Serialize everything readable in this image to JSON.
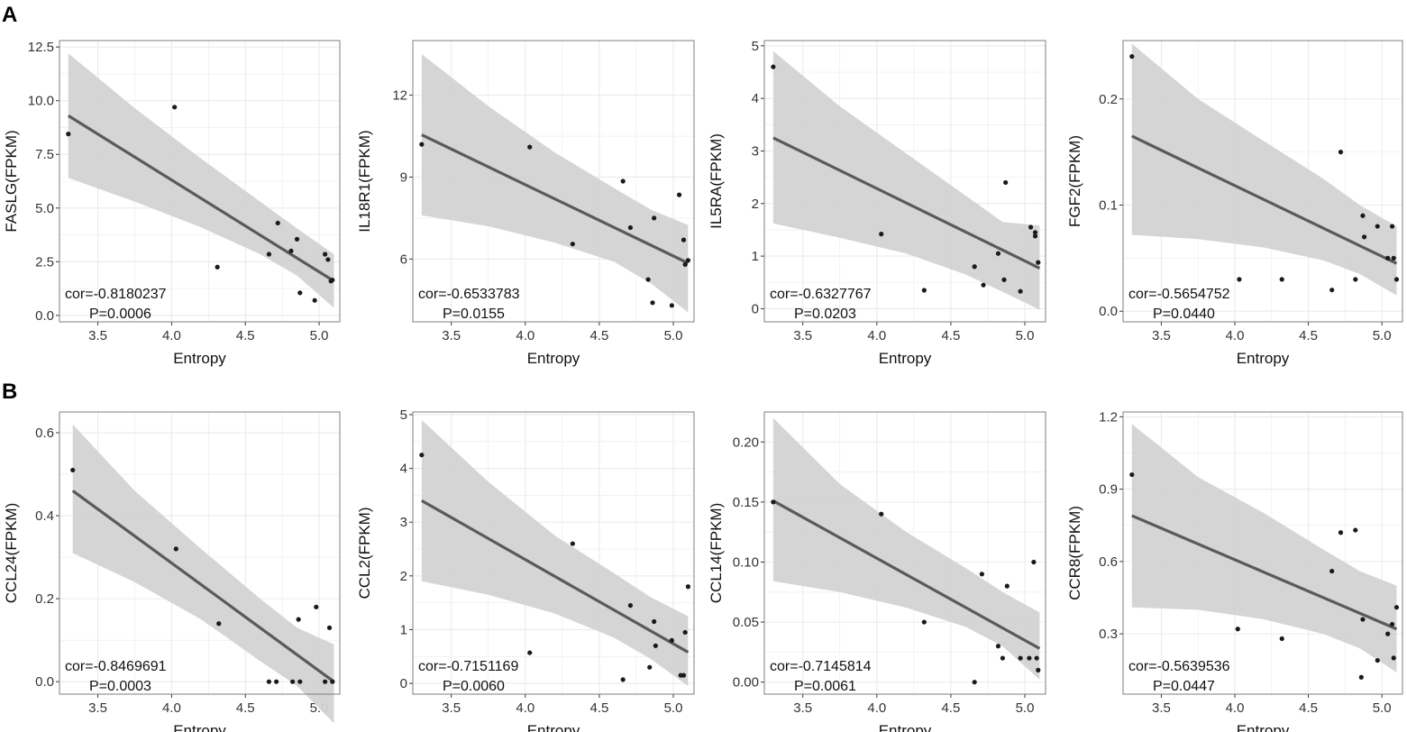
{
  "panel_labels": [
    "A",
    "B"
  ],
  "colors": {
    "band": "#d3d3d3",
    "line": "#5a5a5a",
    "point": "#1a1a1a",
    "grid": "#ebebeb",
    "frame": "#7f7f7f"
  },
  "chart_data": [
    {
      "type": "scatter",
      "panel": "A",
      "xlabel": "Entropy",
      "ylabel": "FASLG(FPKM)",
      "xlim": [
        3.24,
        5.14
      ],
      "ylim": [
        -0.3,
        12.8
      ],
      "xticks": [
        3.5,
        4.0,
        4.5,
        5.0
      ],
      "xtick_labels": [
        "3.5",
        "4.0",
        "4.5",
        "5.0"
      ],
      "yticks": [
        0,
        2.5,
        5,
        7.5,
        10,
        12.5
      ],
      "ytick_labels": [
        "0.0",
        "2.5",
        "5.0",
        "7.5",
        "10.0",
        "12.5"
      ],
      "x": [
        3.3,
        4.02,
        4.31,
        4.66,
        4.72,
        4.81,
        4.85,
        4.87,
        4.97,
        5.04,
        5.06,
        5.08,
        5.09
      ],
      "y": [
        8.45,
        9.7,
        2.25,
        2.85,
        4.3,
        3.0,
        3.55,
        1.05,
        0.7,
        2.85,
        2.6,
        1.6,
        1.65
      ],
      "fit": {
        "x": [
          3.3,
          5.1
        ],
        "y": [
          9.3,
          1.6
        ]
      },
      "band": {
        "x": [
          3.3,
          3.75,
          4.2,
          4.6,
          4.85,
          5.1
        ],
        "lower": [
          6.4,
          5.3,
          4.1,
          2.85,
          1.85,
          0.35
        ],
        "upper": [
          12.2,
          9.65,
          7.3,
          5.3,
          4.05,
          2.85
        ]
      },
      "cor": "cor=-0.8180237",
      "p": "P=0.0006"
    },
    {
      "type": "scatter",
      "panel": "A",
      "xlabel": "Entropy",
      "ylabel": "IL18R1(FPKM)",
      "xlim": [
        3.24,
        5.14
      ],
      "ylim": [
        3.7,
        14.0
      ],
      "xticks": [
        3.5,
        4.0,
        4.5,
        5.0
      ],
      "xtick_labels": [
        "3.5",
        "4.0",
        "4.5",
        "5.0"
      ],
      "yticks": [
        6,
        9,
        12
      ],
      "ytick_labels": [
        "6",
        "9",
        "12"
      ],
      "x": [
        3.3,
        4.03,
        4.32,
        4.66,
        4.71,
        4.83,
        4.86,
        4.87,
        4.99,
        5.04,
        5.07,
        5.08,
        5.1
      ],
      "y": [
        10.2,
        10.1,
        6.55,
        8.85,
        7.15,
        5.25,
        4.4,
        7.5,
        4.3,
        8.35,
        6.7,
        5.8,
        5.95
      ],
      "fit": {
        "x": [
          3.3,
          5.1
        ],
        "y": [
          10.55,
          5.85
        ]
      },
      "band": {
        "x": [
          3.3,
          3.75,
          4.2,
          4.6,
          4.85,
          5.1
        ],
        "lower": [
          7.6,
          7.2,
          6.6,
          5.9,
          5.1,
          4.05
        ],
        "upper": [
          13.5,
          11.6,
          9.9,
          8.6,
          7.8,
          7.25
        ]
      },
      "cor": "cor=-0.6533783",
      "p": "P=0.0155"
    },
    {
      "type": "scatter",
      "panel": "A",
      "xlabel": "Entropy",
      "ylabel": "IL5RA(FPKM)",
      "xlim": [
        3.24,
        5.14
      ],
      "ylim": [
        -0.25,
        5.1
      ],
      "xticks": [
        3.5,
        4.0,
        4.5,
        5.0
      ],
      "xtick_labels": [
        "3.5",
        "4.0",
        "4.5",
        "5.0"
      ],
      "yticks": [
        0,
        1,
        2,
        3,
        4,
        5
      ],
      "ytick_labels": [
        "0",
        "1",
        "2",
        "3",
        "4",
        "5"
      ],
      "x": [
        3.3,
        4.03,
        4.32,
        4.66,
        4.72,
        4.82,
        4.86,
        4.87,
        4.97,
        5.04,
        5.07,
        5.07,
        5.09
      ],
      "y": [
        4.6,
        1.42,
        0.35,
        0.8,
        0.45,
        1.05,
        0.55,
        2.4,
        0.33,
        1.55,
        1.45,
        1.38,
        0.88
      ],
      "fit": {
        "x": [
          3.3,
          5.1
        ],
        "y": [
          3.25,
          0.77
        ]
      },
      "band": {
        "x": [
          3.3,
          3.75,
          4.2,
          4.6,
          4.85,
          5.1
        ],
        "lower": [
          1.62,
          1.35,
          1.05,
          0.65,
          0.32,
          -0.02
        ],
        "upper": [
          4.9,
          3.85,
          2.95,
          2.15,
          1.65,
          1.58
        ]
      },
      "cor": "cor=-0.6327767",
      "p": "P=0.0203"
    },
    {
      "type": "scatter",
      "panel": "A",
      "xlabel": "Entropy",
      "ylabel": "FGF2(FPKM)",
      "xlim": [
        3.24,
        5.14
      ],
      "ylim": [
        -0.01,
        0.255
      ],
      "xticks": [
        3.5,
        4.0,
        4.5,
        5.0
      ],
      "xtick_labels": [
        "3.5",
        "4.0",
        "4.5",
        "5.0"
      ],
      "yticks": [
        0.0,
        0.1,
        0.2
      ],
      "ytick_labels": [
        "0.0",
        "0.1",
        "0.2"
      ],
      "x": [
        3.3,
        4.03,
        4.32,
        4.66,
        4.72,
        4.82,
        4.87,
        4.88,
        4.97,
        5.04,
        5.07,
        5.08,
        5.1
      ],
      "y": [
        0.24,
        0.03,
        0.03,
        0.02,
        0.15,
        0.03,
        0.09,
        0.07,
        0.08,
        0.05,
        0.08,
        0.05,
        0.03
      ],
      "fit": {
        "x": [
          3.3,
          5.1
        ],
        "y": [
          0.165,
          0.045
        ]
      },
      "band": {
        "x": [
          3.3,
          3.75,
          4.2,
          4.6,
          4.85,
          5.1
        ],
        "lower": [
          0.072,
          0.068,
          0.06,
          0.048,
          0.035,
          0.015
        ],
        "upper": [
          0.252,
          0.2,
          0.16,
          0.125,
          0.1,
          0.08
        ]
      },
      "cor": "cor=-0.5654752",
      "p": "P=0.0440"
    },
    {
      "type": "scatter",
      "panel": "B",
      "xlabel": "Entropy",
      "ylabel": "CCL24(FPKM)",
      "xlim": [
        3.24,
        5.14
      ],
      "ylim": [
        -0.03,
        0.65
      ],
      "xticks": [
        3.5,
        4.0,
        4.5,
        5.0
      ],
      "xtick_labels": [
        "3.5",
        "4.0",
        "4.5",
        "5.0"
      ],
      "yticks": [
        0.0,
        0.2,
        0.4,
        0.6
      ],
      "ytick_labels": [
        "0.0",
        "0.2",
        "0.4",
        "0.6"
      ],
      "x": [
        3.33,
        4.03,
        4.32,
        4.66,
        4.71,
        4.82,
        4.86,
        4.87,
        4.98,
        5.04,
        5.07,
        5.09
      ],
      "y": [
        0.51,
        0.32,
        0.14,
        0.0,
        0.0,
        0.0,
        0.15,
        0.0,
        0.18,
        0.0,
        0.13,
        0.0
      ],
      "fit": {
        "x": [
          3.33,
          5.1
        ],
        "y": [
          0.46,
          0.0
        ]
      },
      "band": {
        "x": [
          3.33,
          3.75,
          4.2,
          4.6,
          4.85,
          5.1
        ],
        "lower": [
          0.31,
          0.24,
          0.15,
          0.05,
          -0.01,
          -0.1
        ],
        "upper": [
          0.62,
          0.46,
          0.32,
          0.2,
          0.13,
          0.09
        ]
      },
      "cor": "cor=-0.8469691",
      "p": "P=0.0003"
    },
    {
      "type": "scatter",
      "panel": "B",
      "xlabel": "Entropy",
      "ylabel": "CCL2(FPKM)",
      "xlim": [
        3.24,
        5.14
      ],
      "ylim": [
        -0.2,
        5.05
      ],
      "xticks": [
        3.5,
        4.0,
        4.5,
        5.0
      ],
      "xtick_labels": [
        "3.5",
        "4.0",
        "4.5",
        "5.0"
      ],
      "yticks": [
        0,
        1,
        2,
        3,
        4,
        5
      ],
      "ytick_labels": [
        "0",
        "1",
        "2",
        "3",
        "4",
        "5"
      ],
      "x": [
        3.3,
        4.03,
        4.32,
        4.66,
        4.71,
        4.84,
        4.87,
        4.88,
        4.99,
        5.05,
        5.07,
        5.08,
        5.1
      ],
      "y": [
        4.25,
        0.57,
        2.6,
        0.07,
        1.45,
        0.3,
        1.15,
        0.7,
        0.8,
        0.15,
        0.15,
        0.95,
        1.8
      ],
      "fit": {
        "x": [
          3.3,
          5.1
        ],
        "y": [
          3.4,
          0.58
        ]
      },
      "band": {
        "x": [
          3.3,
          3.75,
          4.2,
          4.6,
          4.85,
          5.1
        ],
        "lower": [
          1.9,
          1.65,
          1.3,
          0.85,
          0.45,
          -0.05
        ],
        "upper": [
          4.9,
          3.75,
          2.75,
          2.05,
          1.6,
          1.25
        ]
      },
      "cor": "cor=-0.7151169",
      "p": "P=0.0060"
    },
    {
      "type": "scatter",
      "panel": "B",
      "xlabel": "Entropy",
      "ylabel": "CCL14(FPKM)",
      "xlim": [
        3.24,
        5.14
      ],
      "ylim": [
        -0.01,
        0.225
      ],
      "xticks": [
        3.5,
        4.0,
        4.5,
        5.0
      ],
      "xtick_labels": [
        "3.5",
        "4.0",
        "4.5",
        "5.0"
      ],
      "yticks": [
        0.0,
        0.05,
        0.1,
        0.15,
        0.2
      ],
      "ytick_labels": [
        "0.00",
        "0.05",
        "0.10",
        "0.15",
        "0.20"
      ],
      "x": [
        3.3,
        4.03,
        4.32,
        4.66,
        4.71,
        4.82,
        4.85,
        4.88,
        4.97,
        5.03,
        5.06,
        5.08,
        5.09
      ],
      "y": [
        0.15,
        0.14,
        0.05,
        0.0,
        0.09,
        0.03,
        0.02,
        0.08,
        0.02,
        0.02,
        0.1,
        0.02,
        0.01
      ],
      "fit": {
        "x": [
          3.3,
          5.1
        ],
        "y": [
          0.151,
          0.028
        ]
      },
      "band": {
        "x": [
          3.3,
          3.75,
          4.2,
          4.6,
          4.85,
          5.1
        ],
        "lower": [
          0.084,
          0.075,
          0.062,
          0.046,
          0.03,
          0.002
        ],
        "upper": [
          0.22,
          0.165,
          0.125,
          0.095,
          0.075,
          0.058
        ]
      },
      "cor": "cor=-0.7145814",
      "p": "P=0.0061"
    },
    {
      "type": "scatter",
      "panel": "B",
      "xlabel": "Entropy",
      "ylabel": "CCR8(FPKM)",
      "xlim": [
        3.24,
        5.14
      ],
      "ylim": [
        0.05,
        1.22
      ],
      "xticks": [
        3.5,
        4.0,
        4.5,
        5.0
      ],
      "xtick_labels": [
        "3.5",
        "4.0",
        "4.5",
        "5.0"
      ],
      "yticks": [
        0.3,
        0.6,
        0.9,
        1.2
      ],
      "ytick_labels": [
        "0.3",
        "0.6",
        "0.9",
        "1.2"
      ],
      "x": [
        3.3,
        4.02,
        4.32,
        4.66,
        4.72,
        4.82,
        4.86,
        4.87,
        4.97,
        5.04,
        5.07,
        5.08,
        5.1
      ],
      "y": [
        0.96,
        0.32,
        0.28,
        0.56,
        0.72,
        0.73,
        0.12,
        0.36,
        0.19,
        0.3,
        0.34,
        0.2,
        0.41
      ],
      "fit": {
        "x": [
          3.3,
          5.1
        ],
        "y": [
          0.79,
          0.32
        ]
      },
      "band": {
        "x": [
          3.3,
          3.75,
          4.2,
          4.6,
          4.85,
          5.1
        ],
        "lower": [
          0.41,
          0.4,
          0.36,
          0.3,
          0.24,
          0.14
        ],
        "upper": [
          1.17,
          0.95,
          0.8,
          0.65,
          0.56,
          0.5
        ]
      },
      "cor": "cor=-0.5639536",
      "p": "P=0.0447"
    }
  ]
}
